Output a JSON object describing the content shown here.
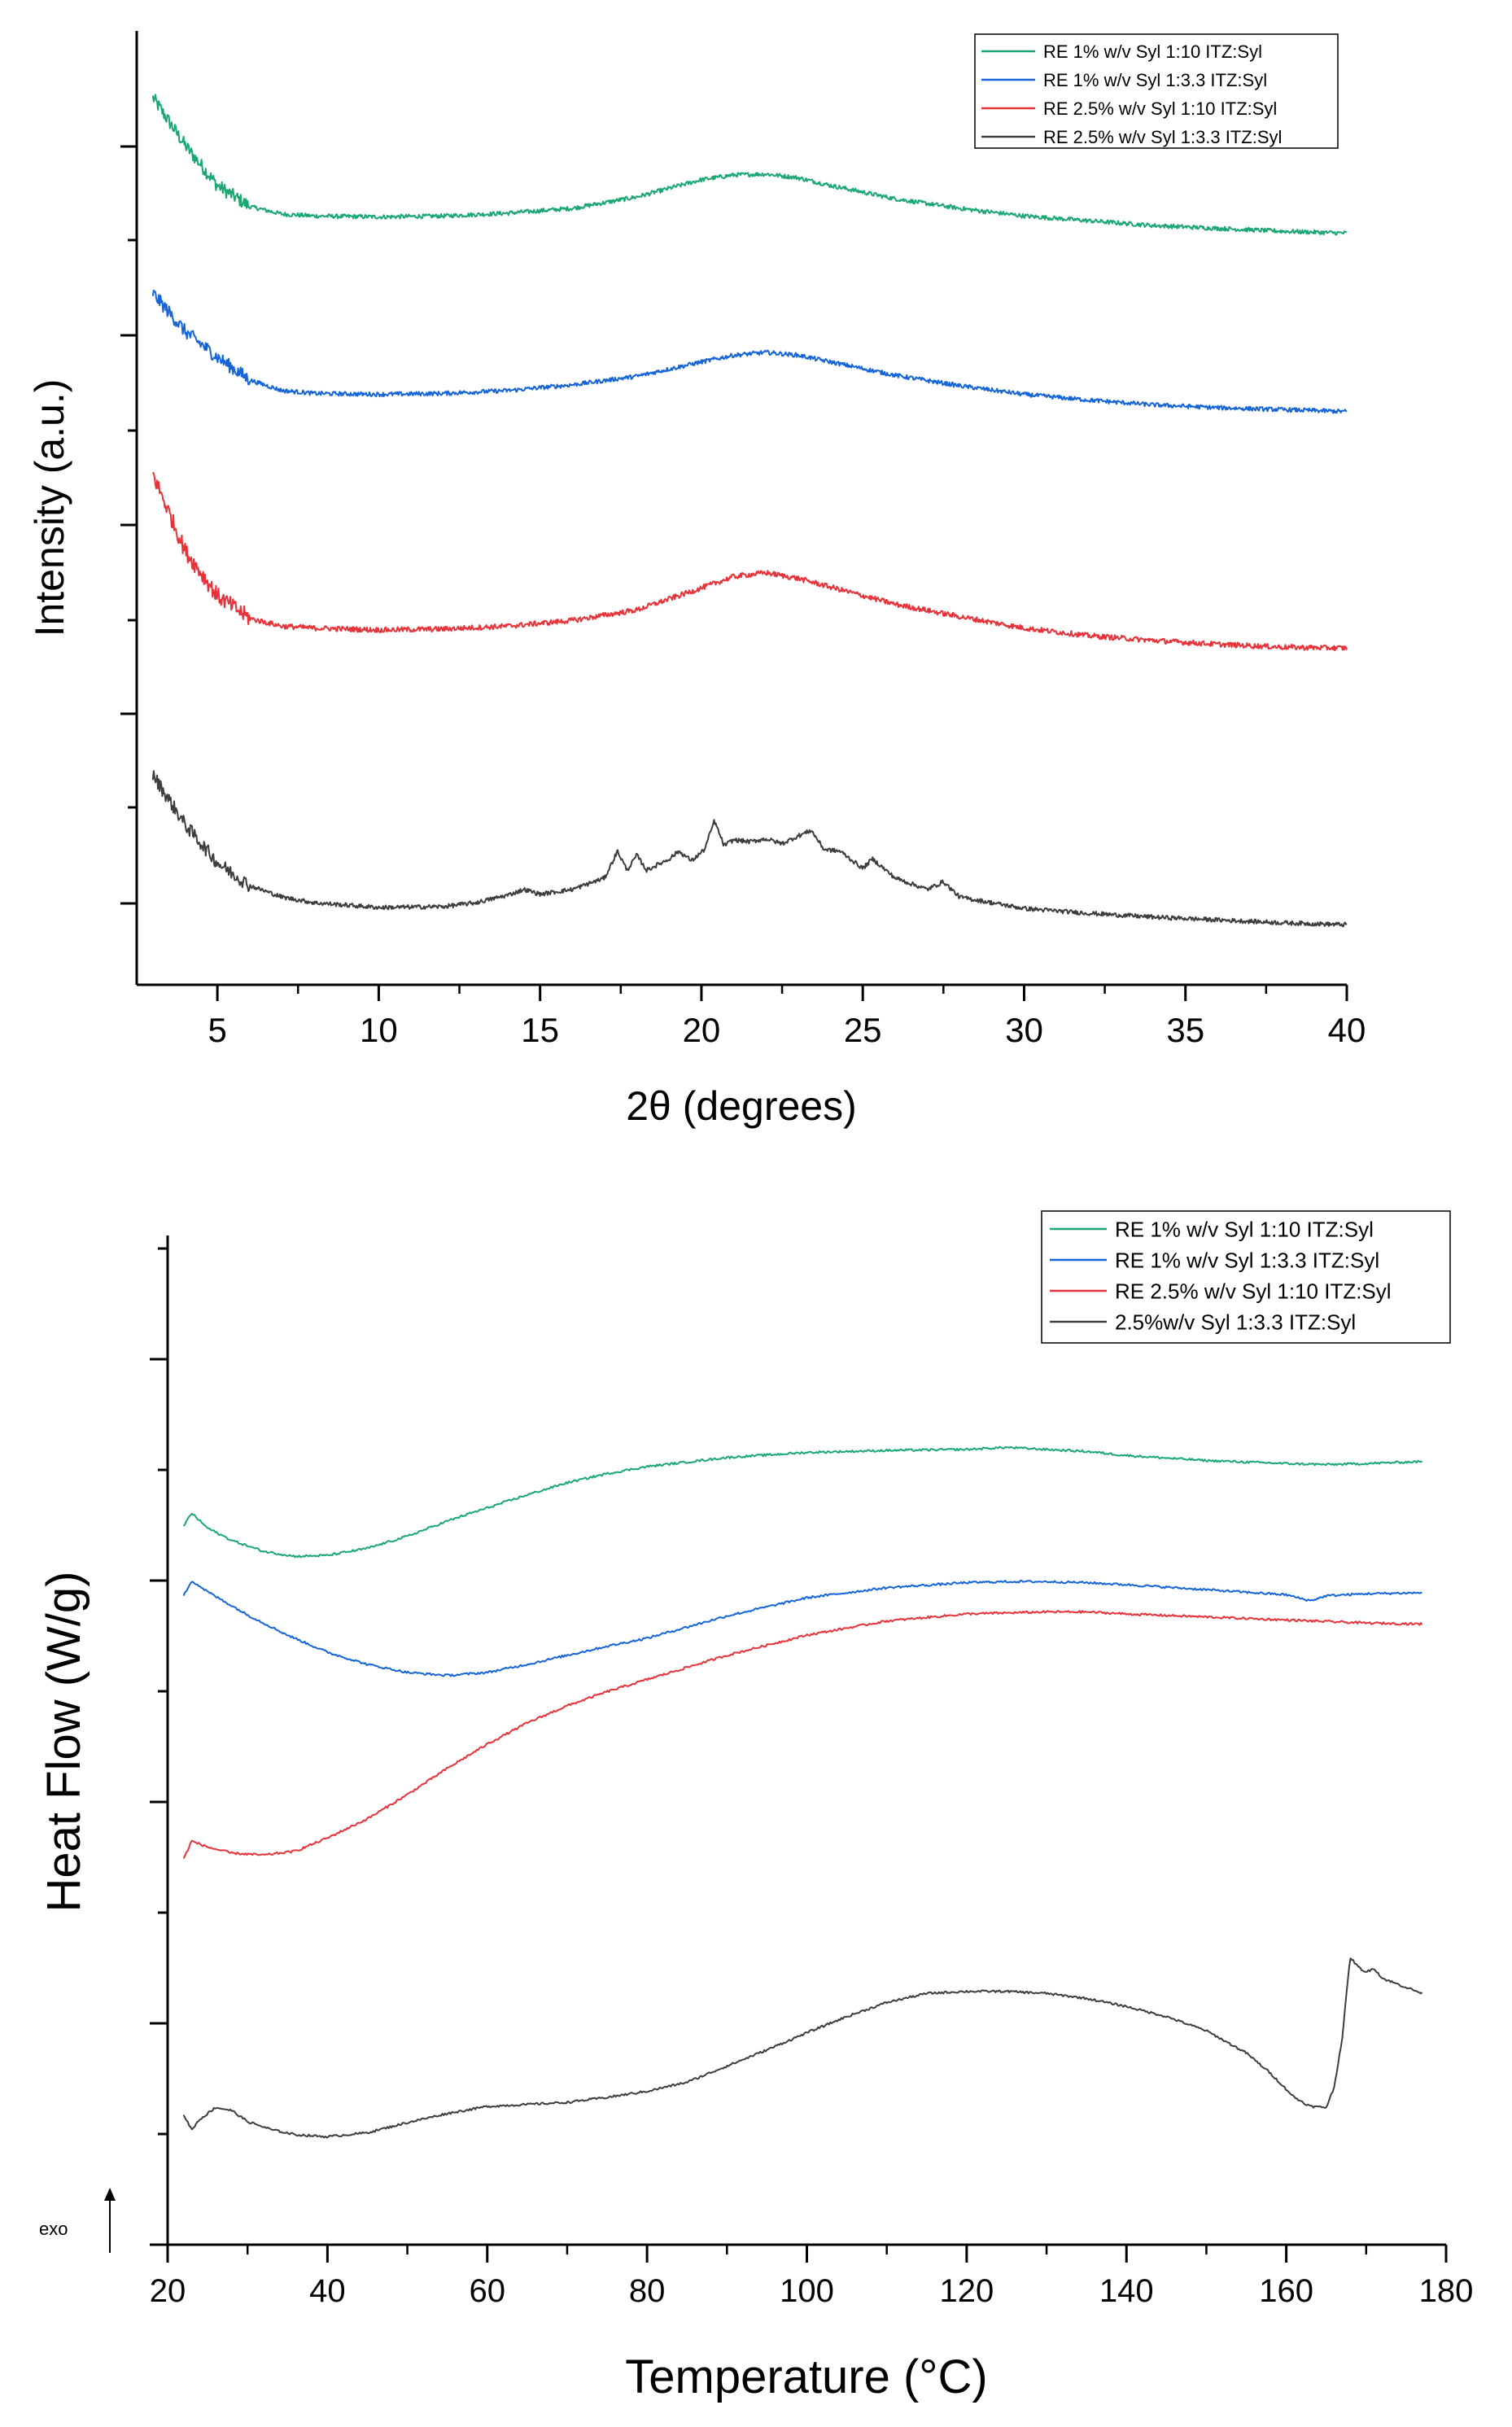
{
  "chart_data": [
    {
      "type": "line",
      "title": "",
      "xlabel": "2θ (degrees)",
      "ylabel": "Intensity (a.u.)",
      "xlim": [
        2.5,
        40
      ],
      "xticks": [
        5,
        10,
        15,
        20,
        25,
        30,
        35,
        40
      ],
      "y_tick_labels": false,
      "grid": false,
      "legend_position": "top-right",
      "series": [
        {
          "name": "RE 1% w/v Syl 1:10 ITZ:Syl",
          "color": "#1aa772",
          "x": [
            3,
            4,
            5,
            6,
            7,
            8,
            10,
            12,
            14,
            16,
            18,
            20,
            21,
            22,
            23,
            24,
            26,
            28,
            30,
            32,
            34,
            36,
            38,
            40
          ],
          "y": [
            93.0,
            88.0,
            83.8,
            81.6,
            80.8,
            80.6,
            80.5,
            80.6,
            80.9,
            81.4,
            82.6,
            84.4,
            84.9,
            85.0,
            84.6,
            83.8,
            82.4,
            81.4,
            80.6,
            80.1,
            79.6,
            79.3,
            79.0,
            78.8
          ]
        },
        {
          "name": "RE 1% w/v Syl 1:3.3 ITZ:Syl",
          "color": "#1565d8",
          "x": [
            3,
            4,
            5,
            6,
            7,
            8,
            10,
            12,
            14,
            16,
            18,
            20,
            21,
            22,
            23,
            24,
            26,
            28,
            30,
            32,
            34,
            36,
            38,
            40
          ],
          "y": [
            72.5,
            68.5,
            65.8,
            63.4,
            62.3,
            62.0,
            61.9,
            62.0,
            62.3,
            62.9,
            63.8,
            65.3,
            66.0,
            66.3,
            66.0,
            65.3,
            63.9,
            62.8,
            61.9,
            61.3,
            60.8,
            60.5,
            60.3,
            60.1
          ]
        },
        {
          "name": "RE 2.5% w/v Syl 1:10 ITZ:Syl",
          "color": "#e8323a",
          "x": [
            3,
            4,
            5,
            6,
            7,
            8,
            10,
            12,
            14,
            16,
            18,
            20,
            21,
            22,
            23,
            24,
            26,
            28,
            30,
            32,
            34,
            36,
            38,
            40
          ],
          "y": [
            53.5,
            45.5,
            40.8,
            38.4,
            37.6,
            37.4,
            37.2,
            37.3,
            37.6,
            38.2,
            39.3,
            41.6,
            42.8,
            43.2,
            42.6,
            41.7,
            39.9,
            38.6,
            37.4,
            36.6,
            36.1,
            35.7,
            35.4,
            35.3
          ]
        },
        {
          "name": "RE 2.5% w/v Syl 1:3.3 ITZ:Syl",
          "color": "#3d3d3d",
          "x": [
            3,
            4,
            5,
            6,
            7,
            8,
            10,
            12,
            13,
            14,
            14.5,
            15,
            16,
            16.5,
            17,
            17.4,
            17.7,
            18.0,
            18.3,
            19,
            19.3,
            19.7,
            20.1,
            20.4,
            20.7,
            21,
            21.5,
            22,
            22.5,
            23,
            23.4,
            23.8,
            24.3,
            25,
            25.3,
            26,
            27,
            27.5,
            28,
            30,
            32,
            34,
            36,
            38,
            40
          ],
          "y": [
            22.0,
            16.8,
            12.8,
            10.4,
            9.2,
            8.6,
            8.1,
            8.2,
            8.6,
            9.4,
            10.0,
            9.5,
            10.0,
            10.6,
            11.2,
            14.0,
            12.0,
            13.6,
            12.0,
            13.2,
            14.0,
            13.0,
            14.2,
            17.2,
            14.6,
            15.2,
            15.0,
            15.3,
            14.8,
            15.6,
            16.2,
            14.2,
            14.0,
            12.2,
            13.2,
            11.2,
            10.0,
            10.8,
            9.2,
            8.0,
            7.5,
            7.1,
            6.8,
            6.5,
            6.3
          ]
        }
      ]
    },
    {
      "type": "line",
      "title": "",
      "xlabel": "Temperature (°C)",
      "ylabel": "Heat Flow (W/g)",
      "xlim": [
        20,
        180
      ],
      "xticks": [
        20,
        40,
        60,
        80,
        100,
        120,
        140,
        160,
        180
      ],
      "y_tick_labels": false,
      "grid": false,
      "legend_position": "top-right",
      "annotation": "exo",
      "series": [
        {
          "name": "RE 1% w/v Syl 1:10 ITZ:Syl",
          "color": "#1aa772",
          "x": [
            22,
            23,
            25,
            28,
            32,
            36,
            40,
            45,
            50,
            55,
            58,
            60,
            65,
            70,
            75,
            80,
            90,
            100,
            110,
            120,
            125,
            130,
            135,
            140,
            150,
            160,
            165,
            170,
            177
          ],
          "y": [
            71.2,
            72.5,
            71.0,
            69.8,
            68.7,
            68.2,
            68.3,
            69.0,
            70.2,
            71.7,
            72.5,
            73.0,
            74.3,
            75.5,
            76.4,
            77.1,
            78.0,
            78.5,
            78.7,
            78.8,
            79.0,
            78.8,
            78.6,
            78.2,
            77.7,
            77.4,
            77.3,
            77.4,
            77.6
          ]
        },
        {
          "name": "RE 1% w/v Syl 1:3.3 ITZ:Syl",
          "color": "#1565d8",
          "x": [
            22,
            23,
            25,
            30,
            35,
            40,
            45,
            50,
            55,
            60,
            65,
            70,
            75,
            80,
            90,
            100,
            110,
            120,
            125,
            130,
            135,
            140,
            150,
            160,
            163,
            165,
            170,
            177
          ],
          "y": [
            64.3,
            65.8,
            64.7,
            62.4,
            60.4,
            58.7,
            57.5,
            56.7,
            56.4,
            56.7,
            57.5,
            58.4,
            59.3,
            60.1,
            62.3,
            64.1,
            65.1,
            65.6,
            65.7,
            65.7,
            65.6,
            65.4,
            64.9,
            64.4,
            63.8,
            64.3,
            64.5,
            64.6
          ]
        },
        {
          "name": "RE 2.5% w/v Syl 1:10 ITZ:Syl",
          "color": "#e8323a",
          "x": [
            22,
            23,
            25,
            28,
            32,
            36,
            40,
            45,
            50,
            55,
            60,
            65,
            70,
            75,
            80,
            90,
            100,
            110,
            120,
            130,
            135,
            140,
            150,
            160,
            170,
            177
          ],
          "y": [
            38.2,
            40.0,
            39.4,
            38.8,
            38.6,
            39.0,
            40.3,
            42.2,
            44.6,
            47.2,
            49.6,
            51.7,
            53.4,
            54.8,
            56.0,
            58.4,
            60.4,
            61.8,
            62.5,
            62.7,
            62.7,
            62.5,
            62.2,
            61.9,
            61.6,
            61.5
          ]
        },
        {
          "name": "2.5%w/v Syl 1:3.3 ITZ:Syl",
          "color": "#3d3d3d",
          "x": [
            22,
            23,
            24,
            26,
            28,
            30,
            33,
            36,
            40,
            45,
            50,
            55,
            60,
            65,
            70,
            75,
            80,
            85,
            90,
            95,
            100,
            105,
            110,
            115,
            120,
            125,
            130,
            135,
            140,
            145,
            150,
            155,
            158,
            161,
            163,
            165,
            166,
            167,
            168,
            169,
            170,
            171,
            172,
            174,
            177
          ],
          "y": [
            12.9,
            11.4,
            12.4,
            13.6,
            13.3,
            12.2,
            11.4,
            10.9,
            10.7,
            11.1,
            12.1,
            13.0,
            13.7,
            13.9,
            14.1,
            14.6,
            15.2,
            16.1,
            17.7,
            19.3,
            21.0,
            22.6,
            24.0,
            24.9,
            25.1,
            25.1,
            24.9,
            24.4,
            23.6,
            22.6,
            21.2,
            19.0,
            17.0,
            14.6,
            13.7,
            13.6,
            15.6,
            20.5,
            28.5,
            27.5,
            27.0,
            27.4,
            26.4,
            25.8,
            24.9
          ]
        }
      ]
    }
  ]
}
